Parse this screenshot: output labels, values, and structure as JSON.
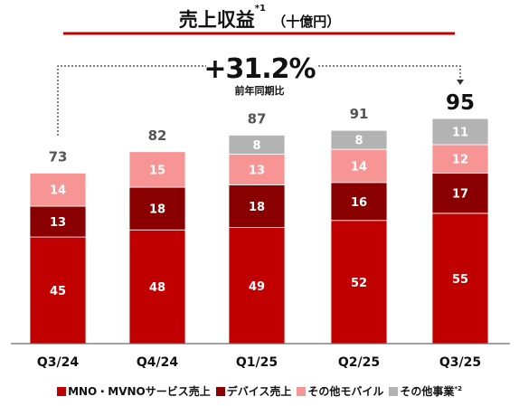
{
  "title": {
    "main": "売上収益",
    "note": "*1",
    "unit": "（十億円）"
  },
  "growth": {
    "value": "+31.2%",
    "label": "前年同期比"
  },
  "colors": {
    "mno": "#c00000",
    "device": "#8a0000",
    "other_mobile": "#f79494",
    "other_business": "#b3b3b3",
    "title_underline": "#c00000",
    "axis": "#6b6b6b"
  },
  "legend": [
    {
      "label": "MNO・MVNOサービス売上",
      "note": "",
      "color": "#c00000"
    },
    {
      "label": "デバイス売上",
      "note": "",
      "color": "#8a0000"
    },
    {
      "label": "その他モバイル",
      "note": "",
      "color": "#f79494"
    },
    {
      "label": "その他事業",
      "note": "*2",
      "color": "#b3b3b3"
    }
  ],
  "chart_data": {
    "type": "bar",
    "stacked": true,
    "categories": [
      "Q3/24",
      "Q4/24",
      "Q1/25",
      "Q2/25",
      "Q3/25"
    ],
    "series": [
      {
        "name": "MNO・MVNOサービス売上",
        "values": [
          45,
          48,
          49,
          52,
          55
        ]
      },
      {
        "name": "デバイス売上",
        "values": [
          13,
          18,
          18,
          16,
          17
        ]
      },
      {
        "name": "その他モバイル",
        "values": [
          14,
          15,
          13,
          14,
          12
        ]
      },
      {
        "name": "その他事業",
        "values": [
          null,
          null,
          8,
          8,
          11
        ]
      }
    ],
    "totals": [
      73,
      82,
      87,
      91,
      95
    ],
    "highlight_index": 4,
    "ylim": [
      0,
      100
    ]
  }
}
